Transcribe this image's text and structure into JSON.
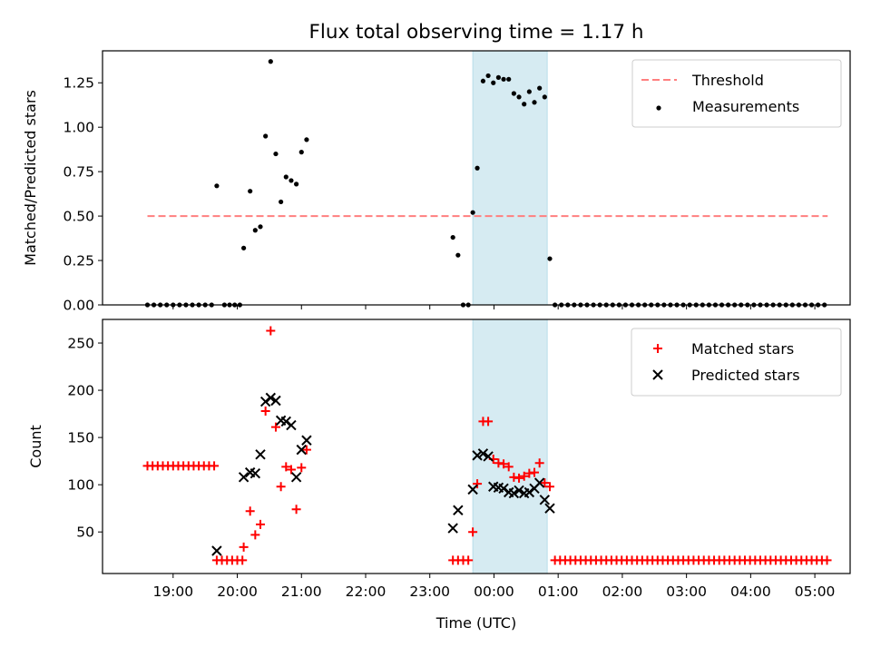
{
  "figure": {
    "title": "Flux total observing time = 1.17 h",
    "xlabel": "Time (UTC)",
    "x_ticks": [
      "19:00",
      "20:00",
      "21:00",
      "22:00",
      "23:00",
      "00:00",
      "01:00",
      "02:00",
      "03:00",
      "04:00",
      "05:00"
    ],
    "highlight_span_hours": [
      23.67,
      24.83
    ],
    "highlight_color": "#add8e6",
    "x_unit_note": "hours since 00:00 of the first night (values > 24 are after midnight)",
    "xlim_hours": [
      17.9,
      29.55
    ]
  },
  "chart_data": [
    {
      "type": "scatter",
      "ylabel": "Matched/Predicted stars",
      "ylim": [
        0,
        1.43
      ],
      "y_ticks": [
        0.0,
        0.25,
        0.5,
        0.75,
        1.0,
        1.25
      ],
      "y_tick_labels": [
        "0.00",
        "0.25",
        "0.50",
        "0.75",
        "1.00",
        "1.25"
      ],
      "legend_position": "top-right",
      "threshold": {
        "name": "Threshold",
        "value": 0.5,
        "x_range": [
          18.6,
          29.2
        ],
        "color": "#ff7f7f",
        "style": "dashed"
      },
      "series": [
        {
          "name": "Measurements",
          "color": "#000000",
          "marker": "dot",
          "points": [
            [
              18.6,
              0
            ],
            [
              18.7,
              0
            ],
            [
              18.8,
              0
            ],
            [
              18.9,
              0
            ],
            [
              19.0,
              0
            ],
            [
              19.1,
              0
            ],
            [
              19.2,
              0
            ],
            [
              19.3,
              0
            ],
            [
              19.4,
              0
            ],
            [
              19.5,
              0
            ],
            [
              19.6,
              0
            ],
            [
              19.68,
              0.67
            ],
            [
              19.8,
              0
            ],
            [
              19.88,
              0
            ],
            [
              19.96,
              0
            ],
            [
              20.04,
              0
            ],
            [
              20.1,
              0.32
            ],
            [
              20.2,
              0.64
            ],
            [
              20.28,
              0.42
            ],
            [
              20.36,
              0.44
            ],
            [
              20.44,
              0.95
            ],
            [
              20.52,
              1.37
            ],
            [
              20.6,
              0.85
            ],
            [
              20.68,
              0.58
            ],
            [
              20.76,
              0.72
            ],
            [
              20.84,
              0.7
            ],
            [
              20.92,
              0.68
            ],
            [
              21.0,
              0.86
            ],
            [
              21.08,
              0.93
            ],
            [
              23.36,
              0.38
            ],
            [
              23.44,
              0.28
            ],
            [
              23.52,
              0
            ],
            [
              23.6,
              0
            ],
            [
              23.67,
              0.52
            ],
            [
              23.74,
              0.77
            ],
            [
              23.83,
              1.26
            ],
            [
              23.91,
              1.29
            ],
            [
              23.99,
              1.25
            ],
            [
              24.07,
              1.28
            ],
            [
              24.15,
              1.27
            ],
            [
              24.23,
              1.27
            ],
            [
              24.31,
              1.19
            ],
            [
              24.39,
              1.17
            ],
            [
              24.47,
              1.13
            ],
            [
              24.55,
              1.2
            ],
            [
              24.63,
              1.14
            ],
            [
              24.71,
              1.22
            ],
            [
              24.79,
              1.17
            ],
            [
              24.87,
              0.26
            ],
            [
              24.95,
              0
            ],
            [
              25.05,
              0
            ],
            [
              25.15,
              0
            ],
            [
              25.25,
              0
            ],
            [
              25.35,
              0
            ],
            [
              25.45,
              0
            ],
            [
              25.55,
              0
            ],
            [
              25.65,
              0
            ],
            [
              25.75,
              0
            ],
            [
              25.85,
              0
            ],
            [
              25.95,
              0
            ],
            [
              26.05,
              0
            ],
            [
              26.15,
              0
            ],
            [
              26.25,
              0
            ],
            [
              26.35,
              0
            ],
            [
              26.45,
              0
            ],
            [
              26.55,
              0
            ],
            [
              26.65,
              0
            ],
            [
              26.75,
              0
            ],
            [
              26.85,
              0
            ],
            [
              26.95,
              0
            ],
            [
              27.05,
              0
            ],
            [
              27.15,
              0
            ],
            [
              27.25,
              0
            ],
            [
              27.35,
              0
            ],
            [
              27.45,
              0
            ],
            [
              27.55,
              0
            ],
            [
              27.65,
              0
            ],
            [
              27.75,
              0
            ],
            [
              27.85,
              0
            ],
            [
              27.95,
              0
            ],
            [
              28.05,
              0
            ],
            [
              28.15,
              0
            ],
            [
              28.25,
              0
            ],
            [
              28.35,
              0
            ],
            [
              28.45,
              0
            ],
            [
              28.55,
              0
            ],
            [
              28.65,
              0
            ],
            [
              28.75,
              0
            ],
            [
              28.85,
              0
            ],
            [
              28.95,
              0
            ],
            [
              29.05,
              0
            ],
            [
              29.15,
              0
            ]
          ]
        }
      ]
    },
    {
      "type": "scatter",
      "ylabel": "Count",
      "ylim": [
        6,
        275
      ],
      "y_ticks": [
        50,
        100,
        150,
        200,
        250
      ],
      "y_tick_labels": [
        "50",
        "100",
        "150",
        "200",
        "250"
      ],
      "legend_position": "top-right",
      "series": [
        {
          "name": "Matched stars",
          "color": "#ff0000",
          "marker": "plus",
          "points": [
            [
              18.6,
              120
            ],
            [
              18.68,
              120
            ],
            [
              18.76,
              120
            ],
            [
              18.84,
              120
            ],
            [
              18.92,
              120
            ],
            [
              19.0,
              120
            ],
            [
              19.08,
              120
            ],
            [
              19.16,
              120
            ],
            [
              19.24,
              120
            ],
            [
              19.32,
              120
            ],
            [
              19.4,
              120
            ],
            [
              19.48,
              120
            ],
            [
              19.56,
              120
            ],
            [
              19.64,
              120
            ],
            [
              19.68,
              20
            ],
            [
              19.76,
              20
            ],
            [
              19.84,
              20
            ],
            [
              19.92,
              20
            ],
            [
              20.0,
              20
            ],
            [
              20.08,
              20
            ],
            [
              20.1,
              34
            ],
            [
              20.2,
              72
            ],
            [
              20.28,
              47
            ],
            [
              20.36,
              58
            ],
            [
              20.44,
              178
            ],
            [
              20.52,
              263
            ],
            [
              20.6,
              161
            ],
            [
              20.68,
              98
            ],
            [
              20.76,
              119
            ],
            [
              20.84,
              116
            ],
            [
              20.92,
              74
            ],
            [
              21.0,
              118
            ],
            [
              21.08,
              137
            ],
            [
              23.36,
              20
            ],
            [
              23.44,
              20
            ],
            [
              23.52,
              20
            ],
            [
              23.6,
              20
            ],
            [
              23.67,
              50
            ],
            [
              23.74,
              101
            ],
            [
              23.83,
              167
            ],
            [
              23.91,
              167
            ],
            [
              23.99,
              127
            ],
            [
              24.07,
              123
            ],
            [
              24.15,
              122
            ],
            [
              24.23,
              119
            ],
            [
              24.31,
              108
            ],
            [
              24.39,
              107
            ],
            [
              24.47,
              109
            ],
            [
              24.55,
              112
            ],
            [
              24.63,
              113
            ],
            [
              24.71,
              123
            ],
            [
              24.79,
              102
            ],
            [
              24.87,
              98
            ],
            [
              24.95,
              20
            ],
            [
              25.03,
              20
            ],
            [
              25.11,
              20
            ],
            [
              25.19,
              20
            ],
            [
              25.27,
              20
            ],
            [
              25.35,
              20
            ],
            [
              25.43,
              20
            ],
            [
              25.51,
              20
            ],
            [
              25.59,
              20
            ],
            [
              25.67,
              20
            ],
            [
              25.75,
              20
            ],
            [
              25.83,
              20
            ],
            [
              25.91,
              20
            ],
            [
              25.99,
              20
            ],
            [
              26.07,
              20
            ],
            [
              26.15,
              20
            ],
            [
              26.23,
              20
            ],
            [
              26.31,
              20
            ],
            [
              26.39,
              20
            ],
            [
              26.47,
              20
            ],
            [
              26.55,
              20
            ],
            [
              26.63,
              20
            ],
            [
              26.71,
              20
            ],
            [
              26.79,
              20
            ],
            [
              26.87,
              20
            ],
            [
              26.95,
              20
            ],
            [
              27.03,
              20
            ],
            [
              27.11,
              20
            ],
            [
              27.19,
              20
            ],
            [
              27.27,
              20
            ],
            [
              27.35,
              20
            ],
            [
              27.43,
              20
            ],
            [
              27.51,
              20
            ],
            [
              27.59,
              20
            ],
            [
              27.67,
              20
            ],
            [
              27.75,
              20
            ],
            [
              27.83,
              20
            ],
            [
              27.91,
              20
            ],
            [
              27.99,
              20
            ],
            [
              28.07,
              20
            ],
            [
              28.15,
              20
            ],
            [
              28.23,
              20
            ],
            [
              28.31,
              20
            ],
            [
              28.39,
              20
            ],
            [
              28.47,
              20
            ],
            [
              28.55,
              20
            ],
            [
              28.63,
              20
            ],
            [
              28.71,
              20
            ],
            [
              28.79,
              20
            ],
            [
              28.87,
              20
            ],
            [
              28.95,
              20
            ],
            [
              29.03,
              20
            ],
            [
              29.11,
              20
            ],
            [
              29.19,
              20
            ]
          ]
        },
        {
          "name": "Predicted stars",
          "color": "#000000",
          "marker": "x",
          "points": [
            [
              19.68,
              30
            ],
            [
              20.1,
              108
            ],
            [
              20.2,
              113
            ],
            [
              20.28,
              112
            ],
            [
              20.36,
              132
            ],
            [
              20.44,
              188
            ],
            [
              20.52,
              192
            ],
            [
              20.6,
              189
            ],
            [
              20.68,
              168
            ],
            [
              20.76,
              167
            ],
            [
              20.84,
              163
            ],
            [
              20.92,
              108
            ],
            [
              21.0,
              137
            ],
            [
              21.08,
              147
            ],
            [
              23.36,
              54
            ],
            [
              23.44,
              73
            ],
            [
              23.67,
              95
            ],
            [
              23.74,
              131
            ],
            [
              23.83,
              133
            ],
            [
              23.91,
              130
            ],
            [
              23.99,
              98
            ],
            [
              24.07,
              97
            ],
            [
              24.15,
              96
            ],
            [
              24.23,
              92
            ],
            [
              24.31,
              91
            ],
            [
              24.39,
              94
            ],
            [
              24.47,
              91
            ],
            [
              24.55,
              92
            ],
            [
              24.63,
              96
            ],
            [
              24.71,
              102
            ],
            [
              24.79,
              84
            ],
            [
              24.87,
              75
            ]
          ]
        }
      ]
    }
  ]
}
